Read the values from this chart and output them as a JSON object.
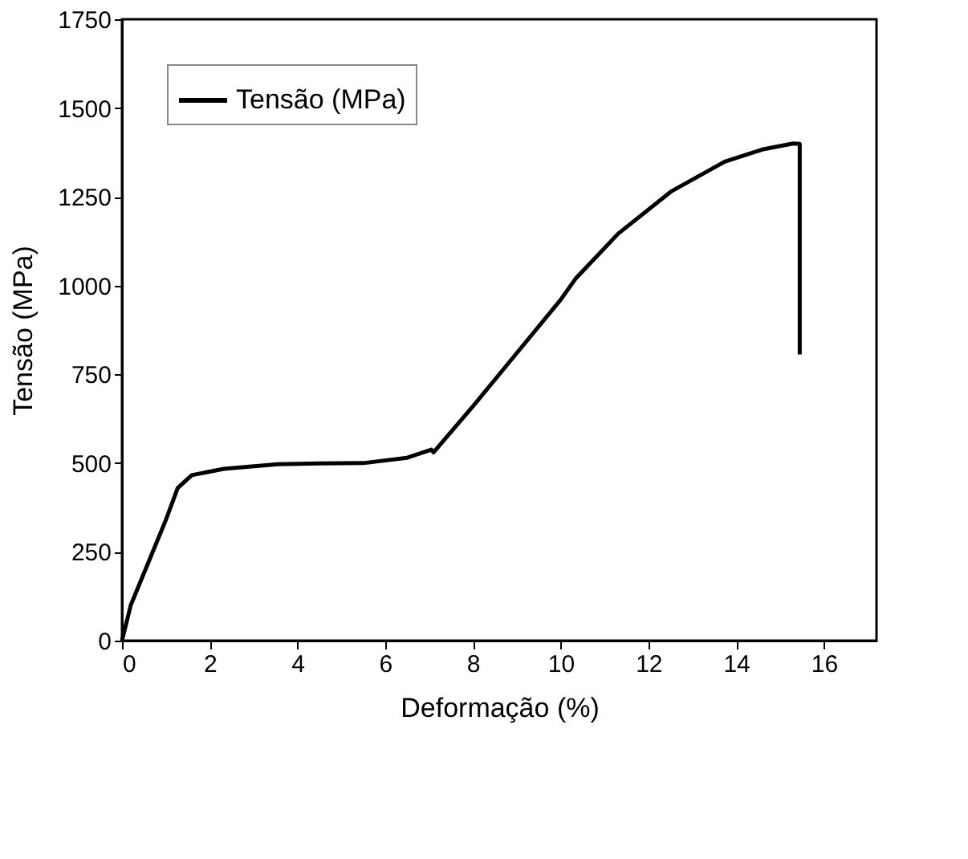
{
  "chart_data": {
    "type": "line",
    "xlabel": "Deformação (%)",
    "ylabel": "Tensão (MPa)",
    "xlim": [
      0,
      17.2
    ],
    "xticks": [
      0,
      2,
      4,
      6,
      8,
      10,
      12,
      14,
      16
    ],
    "ylim": [
      0,
      1750
    ],
    "yticks": [
      0,
      250,
      500,
      750,
      1000,
      1250,
      1500,
      1750
    ],
    "grid": false,
    "legend": "top left",
    "marker": "none",
    "line_style": "solid",
    "series": [
      {
        "name": "Tensão (MPa)",
        "color": "#000000",
        "x": [
          0,
          0.2,
          0.6,
          1.0,
          1.27,
          1.59,
          2.32,
          3.55,
          4.5,
          5.5,
          6.5,
          7.05,
          7.1,
          8.0,
          9.0,
          10.0,
          10.35,
          11.31,
          12.53,
          13.74,
          14.59,
          15.3,
          15.45,
          15.45
        ],
        "values": [
          0,
          100,
          220,
          340,
          430,
          466,
          484,
          497,
          499,
          500,
          515,
          538,
          530,
          660,
          810,
          960,
          1021,
          1146,
          1266,
          1349,
          1383,
          1400,
          1399,
          806
        ]
      }
    ]
  }
}
